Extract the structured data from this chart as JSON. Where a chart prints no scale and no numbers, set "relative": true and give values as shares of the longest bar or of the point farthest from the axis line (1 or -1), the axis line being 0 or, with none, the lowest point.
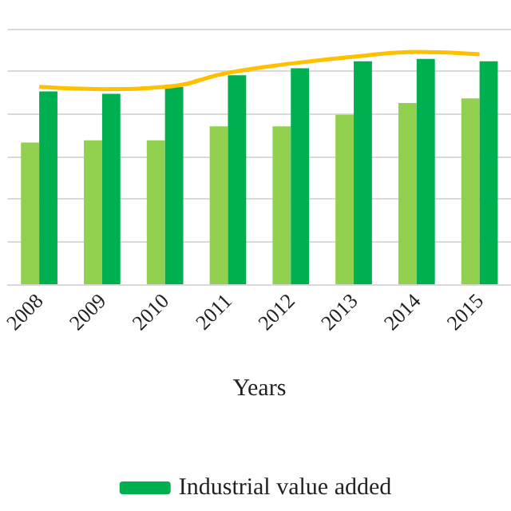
{
  "chart_data": {
    "type": "bar",
    "xlabel": "Years",
    "categories": [
      "2008",
      "2009",
      "2010",
      "2011",
      "2012",
      "2013",
      "2014",
      "2015"
    ],
    "relative": true,
    "grid": "y",
    "legend": "bottom",
    "series": [
      {
        "color": "#92d050",
        "values": [
          0.61,
          0.62,
          0.62,
          0.68,
          0.68,
          0.73,
          0.78,
          0.8
        ]
      },
      {
        "name": "Industrial value added",
        "color": "#00b050",
        "values": [
          0.83,
          0.82,
          0.85,
          0.9,
          0.93,
          0.96,
          0.97,
          0.96
        ]
      },
      {
        "type": "line",
        "color": "#ffc000",
        "marker": "none",
        "values": [
          0.85,
          0.84,
          0.85,
          0.91,
          0.95,
          0.98,
          1,
          0.99
        ]
      }
    ]
  }
}
